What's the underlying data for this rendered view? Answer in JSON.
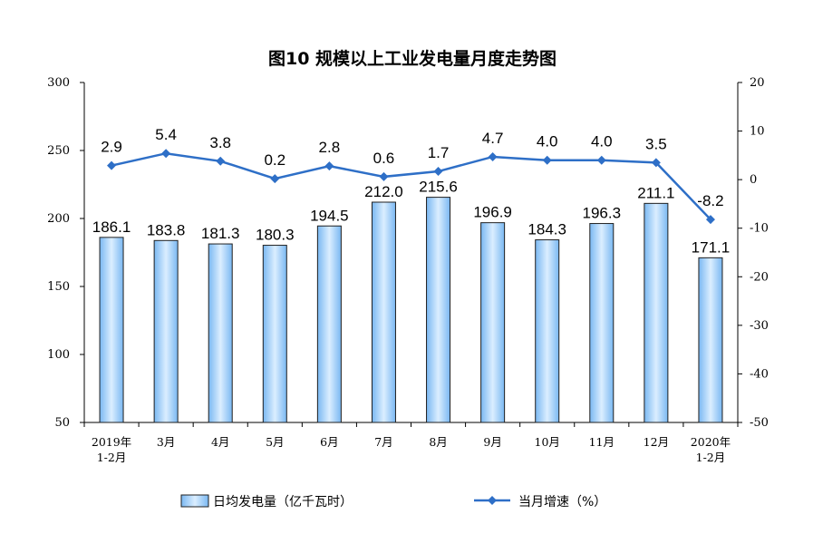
{
  "chart_data": {
    "type": "bar+line",
    "title": "图10  规模以上工业发电量月度走势图",
    "categories": [
      [
        "2019年",
        "1-2月"
      ],
      [
        "3月"
      ],
      [
        "4月"
      ],
      [
        "5月"
      ],
      [
        "6月"
      ],
      [
        "7月"
      ],
      [
        "8月"
      ],
      [
        "9月"
      ],
      [
        "10月"
      ],
      [
        "11月"
      ],
      [
        "12月"
      ],
      [
        "2020年",
        "1-2月"
      ]
    ],
    "series": [
      {
        "name": "日均发电量（亿千瓦时）",
        "kind": "bar",
        "axis": "left",
        "values": [
          186.1,
          183.8,
          181.3,
          180.3,
          194.5,
          212.0,
          215.6,
          196.9,
          184.3,
          196.3,
          211.1,
          171.1
        ],
        "labels": [
          "186.1",
          "183.8",
          "181.3",
          "180.3",
          "194.5",
          "212.0",
          "215.6",
          "196.9",
          "184.3",
          "196.3",
          "211.1",
          "171.1"
        ]
      },
      {
        "name": "当月增速（%）",
        "kind": "line",
        "axis": "right",
        "values": [
          2.9,
          5.4,
          3.8,
          0.2,
          2.8,
          0.6,
          1.7,
          4.7,
          4.0,
          4.0,
          3.5,
          -8.2
        ],
        "labels": [
          "2.9",
          "5.4",
          "3.8",
          "0.2",
          "2.8",
          "0.6",
          "1.7",
          "4.7",
          "4.0",
          "4.0",
          "3.5",
          "-8.2"
        ]
      }
    ],
    "y_left": {
      "min": 50,
      "max": 300,
      "ticks": [
        "50",
        "100",
        "150",
        "200",
        "250",
        "300"
      ]
    },
    "y_right": {
      "min": -50,
      "max": 20,
      "ticks": [
        "-50",
        "-40",
        "-30",
        "-20",
        "-10",
        "0",
        "10",
        "20"
      ]
    },
    "grid": false,
    "legend_position": "bottom",
    "colors": {
      "bar_fill_top": "#dbeeff",
      "bar_fill_bottom": "#7ab8f2",
      "bar_stroke": "#1f1f1f",
      "line": "#2e6fc7"
    }
  }
}
